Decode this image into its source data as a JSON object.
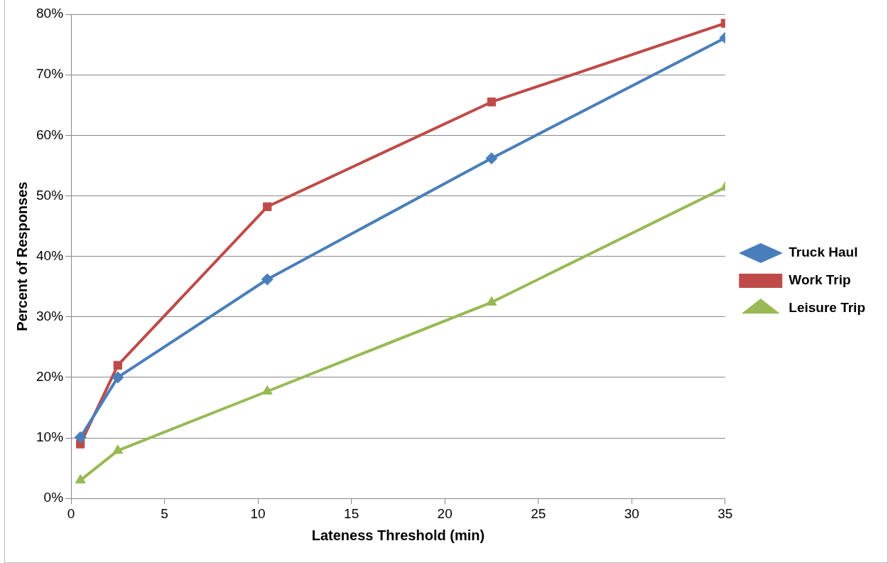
{
  "chart_data": {
    "type": "line",
    "xlabel": "Lateness Threshold (min)",
    "ylabel": "Percent of Responses",
    "xlim": [
      0,
      35
    ],
    "xticks": [
      0,
      5,
      10,
      15,
      20,
      25,
      30,
      35
    ],
    "ylim": [
      0,
      80
    ],
    "yticks": [
      {
        "value": 0,
        "label": "0%"
      },
      {
        "value": 10,
        "label": "10%"
      },
      {
        "value": 20,
        "label": "20%"
      },
      {
        "value": 30,
        "label": "30%"
      },
      {
        "value": 40,
        "label": "40%"
      },
      {
        "value": 50,
        "label": "50%"
      },
      {
        "value": 60,
        "label": "60%"
      },
      {
        "value": 70,
        "label": "70%"
      },
      {
        "value": 80,
        "label": "80%"
      }
    ],
    "grid": "y",
    "legend": "right",
    "line_style": "solid",
    "x": [
      0.5,
      2.5,
      10.5,
      22.5,
      35
    ],
    "series": [
      {
        "name": "Truck Haul",
        "color": "#4a7ebb",
        "marker": "diamond",
        "values": [
          10.1,
          20.0,
          36.2,
          56.2,
          76.1
        ]
      },
      {
        "name": "Work Trip",
        "color": "#be4b48",
        "marker": "square",
        "values": [
          9.0,
          22.0,
          48.2,
          65.5,
          78.5
        ]
      },
      {
        "name": "Leisure Trip",
        "color": "#98b954",
        "marker": "triangle",
        "values": [
          3.0,
          7.9,
          17.7,
          32.4,
          51.4
        ]
      }
    ]
  }
}
